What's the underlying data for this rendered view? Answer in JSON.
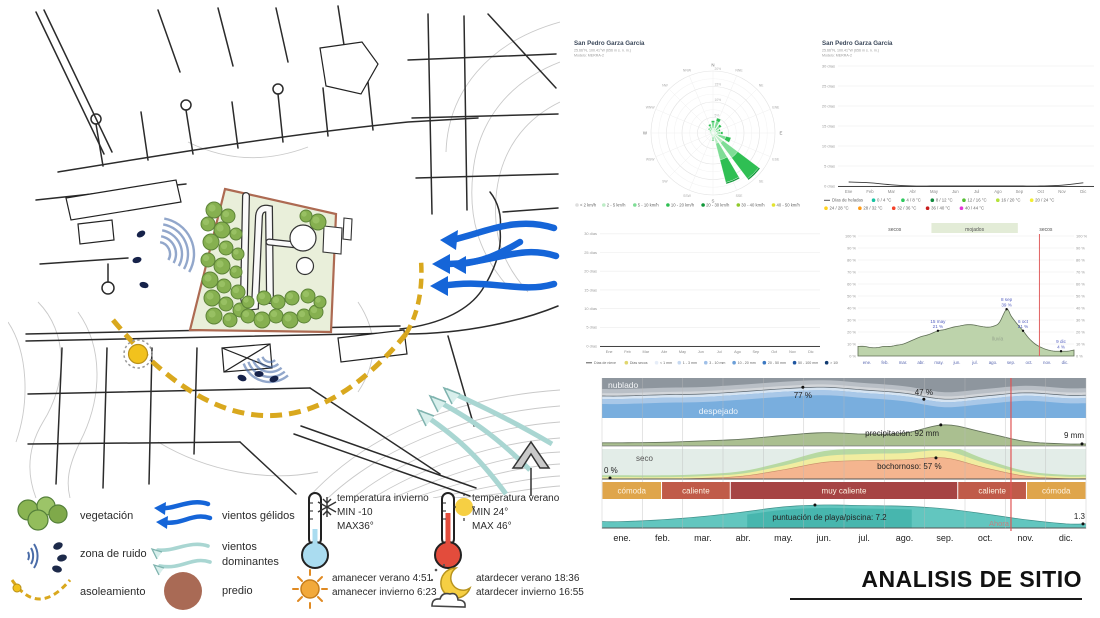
{
  "page": {
    "title": "ANALISIS DE SITIO"
  },
  "map_legend": {
    "vegetacion": "vegetación",
    "zona_ruido": "zona de ruido",
    "asoleamiento": "asoleamiento",
    "vientos_gelidos": "vientos gélidos",
    "vientos_dominantes": "vientos dominantes",
    "predio": "predio",
    "temp_invierno": {
      "l1": "temperatura invierno",
      "l2": "MIN -10",
      "l3": "MAX36°"
    },
    "temp_verano": {
      "l1": "temperatura verano",
      "l2": "MIN 24°",
      "l3": "MAX 46°"
    },
    "amanecer": {
      "l1": "amanecer verano 4:51",
      "l2": "amanecer invierno 6:23"
    },
    "atardecer": {
      "l1": "atardecer verano 18:36",
      "l2": "atardecer invierno 16:55"
    }
  },
  "chart_data": [
    {
      "id": "wind_rose",
      "type": "wind-rose",
      "title": "San Pedro Garza García",
      "subtitle": "25.66°N, 100.41°W (656 m s. n. m.)",
      "model": "Modelo: MERRA-2",
      "compass": [
        "N",
        "NNE",
        "NE",
        "ENE",
        "E",
        "ESE",
        "SE",
        "SSE",
        "S",
        "SSW",
        "SW",
        "WSW",
        "W",
        "WNW",
        "NW",
        "NNW"
      ],
      "rings": [
        5,
        10,
        15,
        20
      ],
      "ring_suffix": "%",
      "speed_bins": [
        {
          "label": "< 2 km/h",
          "color": "#dedede"
        },
        {
          "label": "2 - 5 km/h",
          "color": "#bdecc6"
        },
        {
          "label": "5 - 10 km/h",
          "color": "#7fdd96"
        },
        {
          "label": "10 - 20 km/h",
          "color": "#2fbf53"
        },
        {
          "label": "20 - 30 km/h",
          "color": "#0f9638"
        },
        {
          "label": "30 - 40 km/h",
          "color": "#8fc92c"
        },
        {
          "label": "40 - 50 km/h",
          "color": "#e3e32e"
        }
      ],
      "petals": [
        {
          "dir": "N",
          "v": [
            0.3,
            1.2,
            1.8,
            0.7,
            0,
            0,
            0
          ]
        },
        {
          "dir": "NNE",
          "v": [
            0.3,
            1.4,
            2.2,
            1.1,
            0,
            0,
            0
          ]
        },
        {
          "dir": "NE",
          "v": [
            0.2,
            1.0,
            1.5,
            0.8,
            0,
            0,
            0
          ]
        },
        {
          "dir": "ENE",
          "v": [
            0.2,
            0.8,
            1.0,
            0.5,
            0,
            0,
            0
          ]
        },
        {
          "dir": "E",
          "v": [
            0.2,
            1.0,
            1.3,
            0.7,
            0,
            0,
            0
          ]
        },
        {
          "dir": "ESE",
          "v": [
            0.3,
            1.5,
            2.5,
            1.7,
            0,
            0,
            0
          ]
        },
        {
          "dir": "SE",
          "v": [
            0.4,
            3.6,
            6.0,
            8.5,
            0.5,
            0,
            0
          ]
        },
        {
          "dir": "SSE",
          "v": [
            0.4,
            3.1,
            5.5,
            7.5,
            0.5,
            0,
            0
          ]
        },
        {
          "dir": "S",
          "v": [
            0.2,
            0.9,
            1.1,
            0.3,
            0,
            0,
            0
          ]
        },
        {
          "dir": "SSW",
          "v": [
            0.1,
            0.4,
            0.5,
            0,
            0,
            0,
            0
          ]
        },
        {
          "dir": "SW",
          "v": [
            0.1,
            0.3,
            0.4,
            0,
            0,
            0,
            0
          ]
        },
        {
          "dir": "WSW",
          "v": [
            0.1,
            0.3,
            0.3,
            0,
            0,
            0,
            0
          ]
        },
        {
          "dir": "W",
          "v": [
            0.1,
            0.4,
            0.5,
            0,
            0,
            0,
            0
          ]
        },
        {
          "dir": "WNW",
          "v": [
            0.1,
            0.4,
            0.6,
            0,
            0,
            0,
            0
          ]
        },
        {
          "dir": "NW",
          "v": [
            0.2,
            0.6,
            0.9,
            0.3,
            0,
            0,
            0
          ]
        },
        {
          "dir": "NNW",
          "v": [
            0.2,
            0.9,
            1.3,
            0.6,
            0,
            0,
            0
          ]
        }
      ]
    },
    {
      "id": "temp_days",
      "type": "bar",
      "stacked": true,
      "title": "San Pedro Garza García",
      "subtitle": "25.66°N, 100.41°W (656 m s. n. m.)",
      "model": "Modelo: MERRA-2",
      "categories": [
        "Ene",
        "Feb",
        "Mar",
        "Abr",
        "May",
        "Jun",
        "Jul",
        "Ago",
        "Sep",
        "Oct",
        "Nov",
        "Dic"
      ],
      "y_unit": "días",
      "y_ticks": [
        0,
        5,
        10,
        15,
        20,
        25,
        30
      ],
      "ylim": [
        0,
        31
      ],
      "frost_label": "Días de heladas",
      "frost_line": [
        1,
        0.8,
        0.3,
        0,
        0,
        0,
        0,
        0,
        0,
        0,
        0.2,
        0.8
      ],
      "series": [
        {
          "name": "0 / 4 °C",
          "color": "#17c3a2",
          "values": [
            0.5,
            0.5,
            0,
            0,
            0,
            0,
            0,
            0,
            0,
            0,
            0.5,
            1
          ]
        },
        {
          "name": "4 / 8 °C",
          "color": "#2fc95e",
          "values": [
            1,
            1,
            0.5,
            0,
            0,
            0,
            0,
            0,
            0,
            0,
            0.5,
            1
          ]
        },
        {
          "name": "8 / 12 °C",
          "color": "#128a3e",
          "values": [
            1.5,
            1,
            0.5,
            0,
            0,
            0,
            0,
            0,
            0,
            0,
            1,
            2.5
          ]
        },
        {
          "name": "12 / 16 °C",
          "color": "#55bf33",
          "values": [
            2,
            1.5,
            1,
            0.5,
            0,
            0,
            0,
            0,
            0,
            0.5,
            2,
            4
          ]
        },
        {
          "name": "16 / 20 °C",
          "color": "#b4e23c",
          "values": [
            5,
            2,
            1,
            1,
            0,
            0,
            0,
            0,
            0,
            0.5,
            5,
            5
          ]
        },
        {
          "name": "20 / 24 °C",
          "color": "#f4ee33",
          "values": [
            8,
            7,
            12,
            6.5,
            3,
            0,
            0,
            0,
            5,
            3,
            9,
            8
          ]
        },
        {
          "name": "24 / 28 °C",
          "color": "#ffd21f",
          "values": [
            7,
            8,
            9,
            8,
            5,
            7,
            7,
            7,
            10,
            13,
            8,
            6.5
          ]
        },
        {
          "name": "28 / 32 °C",
          "color": "#ff9a14",
          "values": [
            6,
            7,
            5,
            7,
            11,
            12,
            14,
            13,
            12,
            12,
            4,
            3
          ]
        },
        {
          "name": "32 / 36 °C",
          "color": "#f5422a",
          "values": [
            0,
            0,
            2,
            6,
            10,
            9,
            8,
            9,
            2.5,
            2,
            0,
            0
          ]
        },
        {
          "name": "36 / 40 °C",
          "color": "#c81e1e",
          "values": [
            0,
            0,
            0,
            1,
            1.5,
            2,
            2,
            2,
            0.5,
            0,
            0,
            0
          ]
        },
        {
          "name": "40 / 44 °C",
          "color": "#e535d8",
          "values": [
            0,
            0,
            0,
            0,
            0.5,
            0,
            0,
            0,
            0,
            0,
            0,
            0
          ]
        }
      ]
    },
    {
      "id": "precip_days",
      "type": "bar",
      "stacked": true,
      "categories": [
        "Ene",
        "Feb",
        "Mar",
        "Abr",
        "May",
        "Jun",
        "Jul",
        "Ago",
        "Sep",
        "Oct",
        "Nov",
        "Dic"
      ],
      "y_unit": "días",
      "y_ticks": [
        0,
        5,
        10,
        15,
        20,
        25,
        30
      ],
      "ylim": [
        0,
        31
      ],
      "snow_label": "Días de nieve",
      "series": [
        {
          "name": "Días secos",
          "color": "#e0d66e",
          "values": [
            23.5,
            21,
            22.5,
            19.5,
            17,
            18,
            20,
            20,
            13.5,
            19.5,
            22.5,
            25.5
          ]
        },
        {
          "name": "< 1 mm",
          "color": "#e6edf8",
          "values": [
            2.5,
            2.5,
            3,
            3.5,
            4,
            3.5,
            3.5,
            3.3,
            3.5,
            3,
            2.8,
            2.3
          ]
        },
        {
          "name": "1 - 3 mm",
          "color": "#c6d8f0",
          "values": [
            2,
            2,
            2.5,
            3,
            3.5,
            3,
            3,
            3,
            3.5,
            2.8,
            2.2,
            1.7
          ]
        },
        {
          "name": "3 - 10 mm",
          "color": "#a0c0e8",
          "values": [
            1.5,
            1.5,
            1.5,
            2,
            3,
            2.5,
            2.3,
            2.4,
            3.5,
            2.5,
            1.5,
            1
          ]
        },
        {
          "name": "10 - 20 mm",
          "color": "#6b9fd8",
          "values": [
            1,
            0.7,
            1,
            1.2,
            2,
            1.8,
            1.4,
            1.5,
            3,
            2,
            0.7,
            0.4
          ]
        },
        {
          "name": "20 - 50 mm",
          "color": "#3a78c2",
          "values": [
            0.5,
            0.3,
            0.5,
            0.8,
            1.2,
            1,
            0.8,
            0.8,
            2.2,
            1,
            0.3,
            0.1
          ]
        },
        {
          "name": "50 - 100 mm",
          "color": "#1e55a0",
          "values": [
            0,
            0,
            0,
            0,
            0.3,
            0.2,
            0,
            0,
            0.8,
            0.2,
            0,
            0
          ]
        },
        {
          "name": "> 100 mm",
          "color": "#103a70",
          "values": [
            0,
            0,
            0,
            0,
            0,
            0,
            0,
            0,
            0,
            0,
            0,
            0
          ]
        }
      ]
    },
    {
      "id": "precip_probability",
      "type": "area",
      "season_bands": [
        {
          "label": "secos",
          "from": 0,
          "to": 0.34
        },
        {
          "label": "mojados",
          "from": 0.34,
          "to": 0.74,
          "highlight": true
        },
        {
          "label": "secos",
          "from": 0.74,
          "to": 1
        }
      ],
      "x_labels": [
        "ene.",
        "feb.",
        "mar.",
        "abr.",
        "may.",
        "jun.",
        "jul.",
        "ago.",
        "sep.",
        "oct.",
        "nov.",
        "dic."
      ],
      "y_ticks": [
        0,
        10,
        20,
        30,
        40,
        50,
        60,
        70,
        80,
        90,
        100
      ],
      "y_suffix": " %",
      "series_label": "lluvia",
      "area_color": "#bdd3ab",
      "points": [
        [
          0,
          8
        ],
        [
          0.03,
          8
        ],
        [
          0.06,
          7
        ],
        [
          0.09,
          7
        ],
        [
          0.12,
          8
        ],
        [
          0.15,
          8
        ],
        [
          0.18,
          9
        ],
        [
          0.21,
          10
        ],
        [
          0.25,
          13
        ],
        [
          0.29,
          16
        ],
        [
          0.33,
          18
        ],
        [
          0.37,
          21
        ],
        [
          0.4,
          22
        ],
        [
          0.44,
          24
        ],
        [
          0.47,
          25
        ],
        [
          0.5,
          26
        ],
        [
          0.53,
          26
        ],
        [
          0.56,
          25
        ],
        [
          0.6,
          24
        ],
        [
          0.63,
          25
        ],
        [
          0.655,
          28
        ],
        [
          0.688,
          39
        ],
        [
          0.71,
          33
        ],
        [
          0.74,
          26
        ],
        [
          0.764,
          21
        ],
        [
          0.79,
          15
        ],
        [
          0.82,
          10
        ],
        [
          0.85,
          7
        ],
        [
          0.88,
          5
        ],
        [
          0.91,
          4
        ],
        [
          0.94,
          4
        ],
        [
          0.97,
          4
        ],
        [
          1,
          5
        ]
      ],
      "annotations": [
        {
          "x": 0.37,
          "v": 21,
          "t1": "15 may",
          "t2": "21 %"
        },
        {
          "x": 0.688,
          "v": 39,
          "t1": "8 sep",
          "t2": "39 %"
        },
        {
          "x": 0.764,
          "v": 21,
          "t1": "6 oct",
          "t2": "21 %"
        },
        {
          "x": 0.94,
          "v": 4,
          "t1": "9 dic",
          "t2": "4 %"
        }
      ],
      "now_x": 0.84
    },
    {
      "id": "tourism_overview",
      "type": "bands",
      "months": [
        "ene.",
        "feb.",
        "mar.",
        "abr.",
        "may.",
        "jun.",
        "jul.",
        "ago.",
        "sep.",
        "oct.",
        "nov.",
        "dic."
      ],
      "now_x": 0.845,
      "now_label": "Ahora",
      "clouds": {
        "label_top": "nublado",
        "label_bottom": "despejado",
        "clear_pct": [
          55,
          58,
          60,
          66,
          73,
          77,
          70,
          62,
          47,
          55,
          63,
          57
        ],
        "annotations": [
          {
            "x": 0.415,
            "pct": 77,
            "label": "77 %",
            "pos": "below"
          },
          {
            "x": 0.665,
            "pct": 47,
            "label": "47 %",
            "pos": "above"
          }
        ]
      },
      "precipitation": {
        "values_mm": [
          14,
          16,
          22,
          30,
          46,
          58,
          52,
          56,
          92,
          58,
          20,
          9
        ],
        "annotation": {
          "x": 0.7,
          "v": 92,
          "label": "precipitación: 92 mm"
        },
        "end": {
          "v": 9,
          "label": "9 mm"
        }
      },
      "humidity": {
        "label": "seco",
        "muggy_pct": [
          0,
          0,
          2,
          8,
          25,
          45,
          50,
          52,
          57,
          30,
          8,
          1
        ],
        "annotation": {
          "x": 0.69,
          "v": 57,
          "label": "bochornoso: 57 %"
        },
        "start": {
          "v": 0,
          "label": "0 %"
        }
      },
      "comfort": {
        "segments": [
          {
            "label": "cómoda",
            "from": 0,
            "to": 0.123,
            "color": "#dfa54b"
          },
          {
            "label": "caliente",
            "from": 0.123,
            "to": 0.265,
            "color": "#c05b49"
          },
          {
            "label": "muy caliente",
            "from": 0.265,
            "to": 0.735,
            "color": "#a64444"
          },
          {
            "label": "caliente",
            "from": 0.735,
            "to": 0.877,
            "color": "#c05b49"
          },
          {
            "label": "cómoda",
            "from": 0.877,
            "to": 1,
            "color": "#dfa54b"
          }
        ]
      },
      "beach": {
        "scores": [
          2.0,
          2.6,
          3.6,
          5.0,
          6.6,
          7.2,
          7.0,
          6.8,
          6.0,
          4.4,
          2.6,
          1.3
        ],
        "annotation": {
          "x": 0.44,
          "v": 7.2,
          "label": "puntuación de playa/piscina: 7.2"
        },
        "end": {
          "v": 1.3,
          "label": "1.3"
        }
      }
    }
  ]
}
